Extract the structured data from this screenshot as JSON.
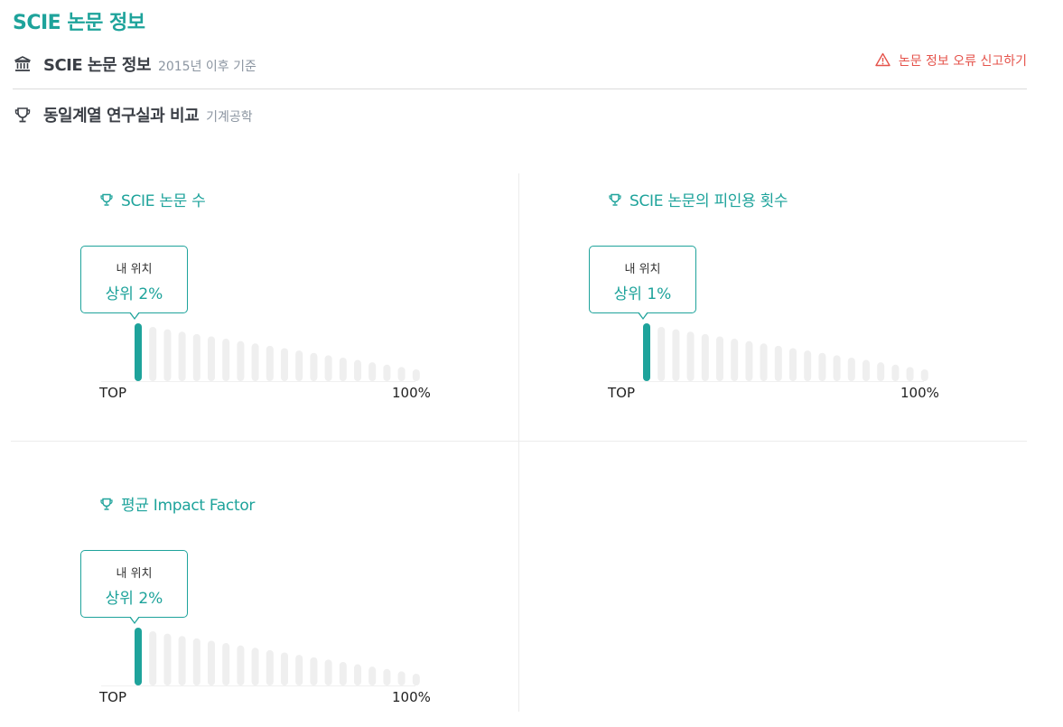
{
  "page_title": "SCIE 논문 정보",
  "scie_row": {
    "icon": "bank-icon",
    "title": "SCIE 논문 정보",
    "subtitle": "2015년 이후 기준"
  },
  "report": {
    "icon": "warning-icon",
    "label": "논문 정보 오류 신고하기",
    "color": "#e5534b"
  },
  "compare_row": {
    "icon": "trophy-icon",
    "title": "동일계열 연구실과 비교",
    "subtitle": "기계공학"
  },
  "accent_color": "#1ea39b",
  "panels": [
    {
      "title": "SCIE 논문 수",
      "icon": "trophy-icon",
      "tooltip_label": "내 위치",
      "tooltip_value": "상위 2%",
      "my_rank_percent": 2,
      "axis_left": "TOP",
      "axis_right": "100%"
    },
    {
      "title": "SCIE 논문의 피인용 횟수",
      "icon": "trophy-icon",
      "tooltip_label": "내 위치",
      "tooltip_value": "상위 1%",
      "my_rank_percent": 1,
      "axis_left": "TOP",
      "axis_right": "100%"
    },
    {
      "title": "평균 Impact Factor",
      "icon": "trophy-icon",
      "tooltip_label": "내 위치",
      "tooltip_value": "상위 2%",
      "my_rank_percent": 2,
      "axis_left": "TOP",
      "axis_right": "100%"
    }
  ]
}
